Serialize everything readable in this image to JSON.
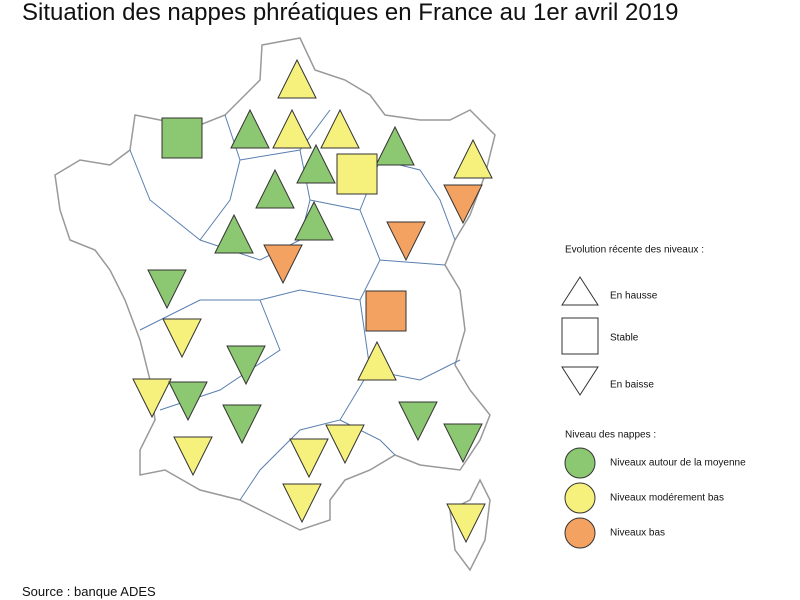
{
  "title": "Situation des nappes phréatiques en France au 1er avril 2019",
  "legend_trend": {
    "title": "Evolution récente des niveaux :",
    "items": [
      "En hausse",
      "Stable",
      "En baisse"
    ]
  },
  "legend_level": {
    "title": "Niveau des nappes :",
    "items": [
      {
        "label": "Niveaux autour de la moyenne",
        "color": "#8cc772"
      },
      {
        "label": "Niveaux modérement bas",
        "color": "#f6f07c"
      },
      {
        "label": "Niveaux bas",
        "color": "#f4a262"
      }
    ]
  },
  "source": "Source : banque ADES"
}
